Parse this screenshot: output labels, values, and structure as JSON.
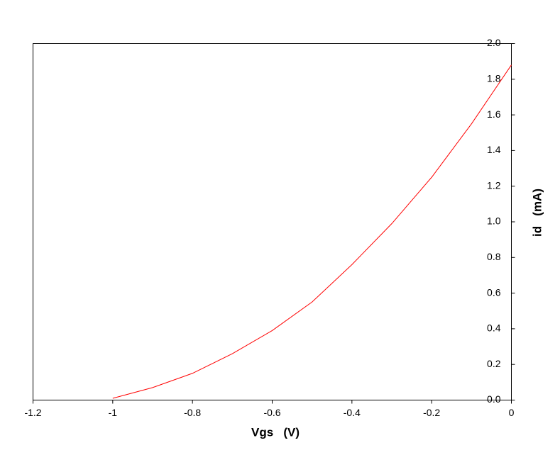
{
  "chart_data": {
    "type": "line",
    "x_label": "Vgs   (V)",
    "y_label": "id   (mA)",
    "x": [
      -1,
      -0.9,
      -0.8,
      -0.7,
      -0.6,
      -0.5,
      -0.4,
      -0.3,
      -0.2,
      -0.1,
      0
    ],
    "series": [
      {
        "color": "#ff0000",
        "values": [
          0.01,
          0.07,
          0.15,
          0.26,
          0.39,
          0.55,
          0.76,
          0.99,
          1.25,
          1.55,
          1.88
        ]
      }
    ],
    "xlim": [
      -1.2,
      0
    ],
    "xticks": [
      -1.2,
      -1,
      -0.8,
      -0.6,
      -0.4,
      -0.2,
      0
    ],
    "ylim": [
      0,
      2
    ],
    "yticks": [
      {
        "value": 0,
        "label": "0.0"
      },
      0.2,
      0.4,
      0.6,
      0.8,
      {
        "value": 1,
        "label": "1.0"
      },
      1.2,
      1.4,
      1.6,
      1.8,
      {
        "value": 2,
        "label": "2.0"
      }
    ],
    "grid": false
  }
}
